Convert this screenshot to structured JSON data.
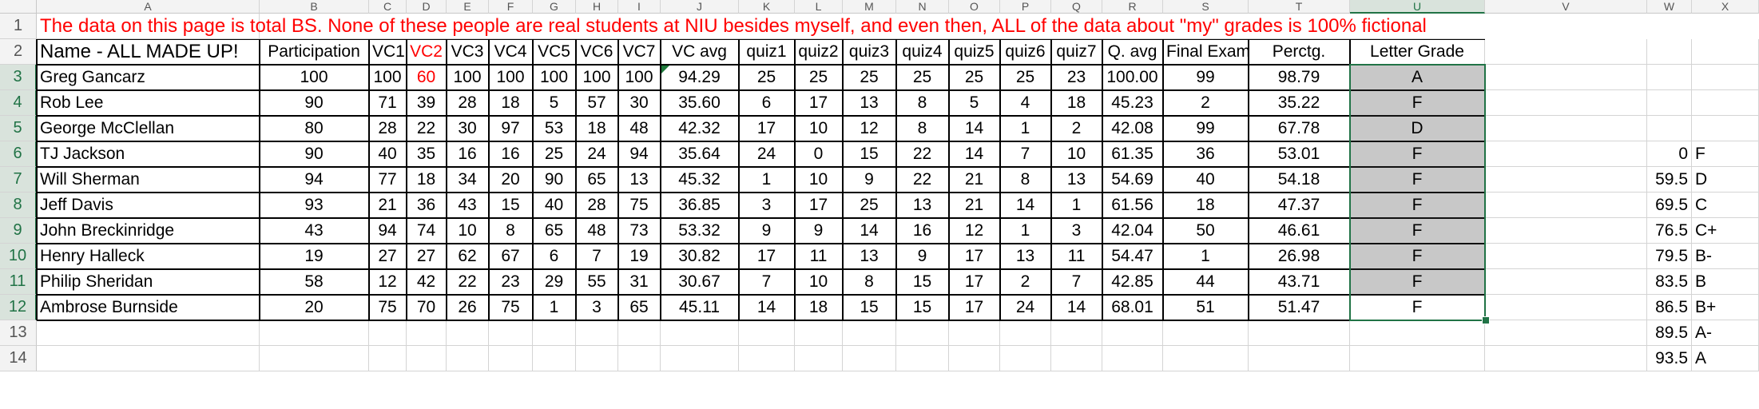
{
  "columns": [
    "A",
    "B",
    "C",
    "D",
    "E",
    "F",
    "G",
    "H",
    "I",
    "J",
    "K",
    "L",
    "M",
    "N",
    "O",
    "P",
    "Q",
    "R",
    "S",
    "T",
    "U",
    "V",
    "W",
    "X"
  ],
  "selected_column": "U",
  "rows": [
    "1",
    "2",
    "3",
    "4",
    "5",
    "6",
    "7",
    "8",
    "9",
    "10",
    "11",
    "12",
    "13",
    "14"
  ],
  "disclaimer": "The data on this page is total BS. None of these people are real students at NIU besides myself, and even then, ALL of the data about \"my\" grades is 100% fictional",
  "headers": [
    "Name - ALL MADE UP!",
    "Participation",
    "VC1",
    "VC2",
    "VC3",
    "VC4",
    "VC5",
    "VC6",
    "VC7",
    "VC avg",
    "quiz1",
    "quiz2",
    "quiz3",
    "quiz4",
    "quiz5",
    "quiz6",
    "quiz7",
    "Q. avg",
    "Final Exam",
    "Perctg.",
    "Letter Grade"
  ],
  "students": [
    [
      "Greg Gancarz",
      "100",
      "100",
      "60",
      "100",
      "100",
      "100",
      "100",
      "100",
      "94.29",
      "25",
      "25",
      "25",
      "25",
      "25",
      "25",
      "23",
      "100.00",
      "99",
      "98.79",
      "A"
    ],
    [
      "Rob Lee",
      "90",
      "71",
      "39",
      "28",
      "18",
      "5",
      "57",
      "30",
      "35.60",
      "6",
      "17",
      "13",
      "8",
      "5",
      "4",
      "18",
      "45.23",
      "2",
      "35.22",
      "F"
    ],
    [
      "George McClellan",
      "80",
      "28",
      "22",
      "30",
      "97",
      "53",
      "18",
      "48",
      "42.32",
      "17",
      "10",
      "12",
      "8",
      "14",
      "1",
      "2",
      "42.08",
      "99",
      "67.78",
      "D"
    ],
    [
      "TJ Jackson",
      "90",
      "40",
      "35",
      "16",
      "16",
      "25",
      "24",
      "94",
      "35.64",
      "24",
      "0",
      "15",
      "22",
      "14",
      "7",
      "10",
      "61.35",
      "36",
      "53.01",
      "F"
    ],
    [
      "Will Sherman",
      "94",
      "77",
      "18",
      "34",
      "20",
      "90",
      "65",
      "13",
      "45.32",
      "1",
      "10",
      "9",
      "22",
      "21",
      "8",
      "13",
      "54.69",
      "40",
      "54.18",
      "F"
    ],
    [
      "Jeff Davis",
      "93",
      "21",
      "36",
      "43",
      "15",
      "40",
      "28",
      "75",
      "36.85",
      "3",
      "17",
      "25",
      "13",
      "21",
      "14",
      "1",
      "61.56",
      "18",
      "47.37",
      "F"
    ],
    [
      "John Breckinridge",
      "43",
      "94",
      "74",
      "10",
      "8",
      "65",
      "48",
      "73",
      "53.32",
      "9",
      "9",
      "14",
      "16",
      "12",
      "1",
      "3",
      "42.04",
      "50",
      "46.61",
      "F"
    ],
    [
      "Henry Halleck",
      "19",
      "27",
      "27",
      "62",
      "67",
      "6",
      "7",
      "19",
      "30.82",
      "17",
      "11",
      "13",
      "9",
      "17",
      "13",
      "11",
      "54.47",
      "1",
      "26.98",
      "F"
    ],
    [
      "Philip Sheridan",
      "58",
      "12",
      "42",
      "22",
      "23",
      "29",
      "55",
      "31",
      "30.67",
      "7",
      "10",
      "8",
      "15",
      "17",
      "2",
      "7",
      "42.85",
      "44",
      "43.71",
      "F"
    ],
    [
      "Ambrose Burnside",
      "20",
      "75",
      "70",
      "26",
      "75",
      "1",
      "3",
      "65",
      "45.11",
      "14",
      "18",
      "15",
      "15",
      "17",
      "24",
      "14",
      "68.01",
      "51",
      "51.47",
      "F"
    ]
  ],
  "grade_scale": [
    {
      "row": 6,
      "cutoff": "0",
      "grade": "F"
    },
    {
      "row": 7,
      "cutoff": "59.5",
      "grade": "D"
    },
    {
      "row": 8,
      "cutoff": "69.5",
      "grade": "C"
    },
    {
      "row": 9,
      "cutoff": "76.5",
      "grade": "C+"
    },
    {
      "row": 10,
      "cutoff": "79.5",
      "grade": "B-"
    },
    {
      "row": 11,
      "cutoff": "83.5",
      "grade": "B"
    },
    {
      "row": 12,
      "cutoff": "86.5",
      "grade": "B+"
    },
    {
      "row": 13,
      "cutoff": "89.5",
      "grade": "A-"
    },
    {
      "row": 14,
      "cutoff": "93.5",
      "grade": "A"
    }
  ],
  "colors": {
    "disclaimer": "#ff0000",
    "vc2": "#ff0000",
    "selection": "#217346",
    "grade_fill": "#c8c8c8"
  }
}
